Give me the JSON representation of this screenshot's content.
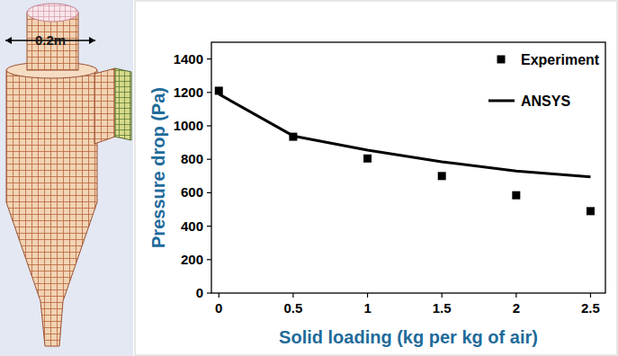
{
  "chart_data": {
    "type": "line",
    "x_label": "Solid loading (kg per kg of air)",
    "y_label": "Pressure drop (Pa)",
    "x": [
      0,
      0.5,
      1,
      1.5,
      2,
      2.5
    ],
    "series": [
      {
        "name": "Experiment",
        "type": "scatter",
        "marker": "square",
        "color": "#000000",
        "values": [
          1210,
          935,
          805,
          700,
          585,
          490
        ]
      },
      {
        "name": "ANSYS",
        "type": "line",
        "line_style": "solid",
        "color": "#000000",
        "values": [
          1190,
          940,
          855,
          785,
          730,
          695
        ]
      }
    ],
    "xlim": [
      -0.05,
      2.6
    ],
    "ylim": [
      0,
      1500
    ],
    "xticks": [
      0,
      0.5,
      1,
      1.5,
      2,
      2.5
    ],
    "yticks": [
      0,
      200,
      400,
      600,
      800,
      1000,
      1200,
      1400
    ],
    "grid": false,
    "legend": "upper right",
    "annotations": [
      "0.2m"
    ]
  }
}
